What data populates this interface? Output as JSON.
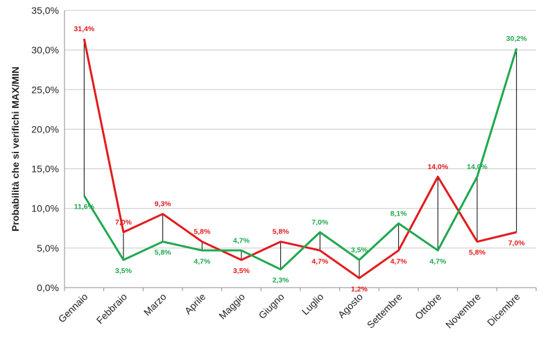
{
  "chart_data": {
    "type": "line",
    "title": "",
    "xlabel": "",
    "ylabel": "Probabilità che si verifichi MAX/MIN",
    "ylim": [
      0,
      35
    ],
    "yticks": [
      "0,0%",
      "5,0%",
      "10,0%",
      "15,0%",
      "20,0%",
      "25,0%",
      "30,0%",
      "35,0%"
    ],
    "grid": true,
    "legend": "none",
    "categories": [
      "Gennaio",
      "Febbraio",
      "Marzo",
      "Aprile",
      "Maggio",
      "Giugno",
      "Luglio",
      "Agosto",
      "Settembre",
      "Ottobre",
      "Novembre",
      "Dicembre"
    ],
    "series": [
      {
        "color": "#e31a1c",
        "values": [
          31.4,
          7.0,
          9.3,
          5.8,
          3.5,
          5.8,
          4.7,
          1.2,
          4.7,
          14.0,
          5.8,
          7.0
        ],
        "labels": [
          "31,4%",
          "7,0%",
          "9,3%",
          "5,8%",
          "3,5%",
          "5,8%",
          "4,7%",
          "1,2%",
          "4,7%",
          "14,0%",
          "5,8%",
          "7,0%"
        ]
      },
      {
        "color": "#1fa84f",
        "values": [
          11.6,
          3.5,
          5.8,
          4.7,
          4.7,
          2.3,
          7.0,
          3.5,
          8.1,
          4.7,
          14.0,
          30.2
        ],
        "labels": [
          "11,6%",
          "3,5%",
          "5,8%",
          "4,7%",
          "4,7%",
          "2,3%",
          "7,0%",
          "3,5%",
          "8,1%",
          "4,7%",
          "14,0%",
          "30,2%"
        ]
      }
    ]
  }
}
